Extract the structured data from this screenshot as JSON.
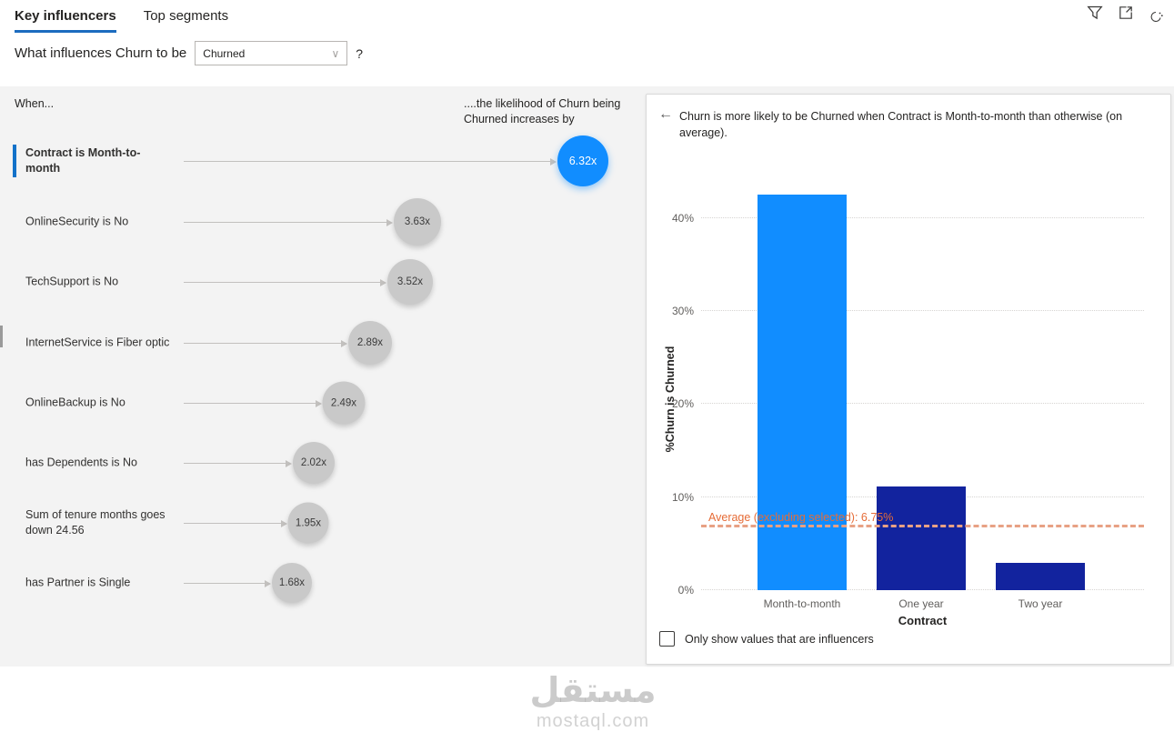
{
  "colors": {
    "accent": "#1C6CBF",
    "accent_bright": "#1372C9",
    "selected_blue": "#118DFF",
    "dark_blue": "#12239E",
    "bubble_gray": "#C9C9C9",
    "avg_line": "#E8A184",
    "avg_text": "#E66C37",
    "panel_bg": "#F3F3F3"
  },
  "tabs": [
    {
      "label": "Key influencers",
      "active": true
    },
    {
      "label": "Top segments",
      "active": false
    }
  ],
  "header_icons": [
    "filter-icon",
    "focus-mode-icon",
    "analyze-icon"
  ],
  "question": {
    "prefix": "What influences Churn to be",
    "dropdown_value": "Churned",
    "suffix": "?"
  },
  "left_panel": {
    "when_label": "When...",
    "likelihood_label": "....the likelihood of Churn being Churned increases by",
    "influencers": [
      {
        "label": "Contract is Month-to-month",
        "value": "6.32x",
        "selected": true
      },
      {
        "label": "OnlineSecurity is No",
        "value": "3.63x",
        "selected": false
      },
      {
        "label": "TechSupport is No",
        "value": "3.52x",
        "selected": false
      },
      {
        "label": "InternetService is Fiber optic",
        "value": "2.89x",
        "selected": false
      },
      {
        "label": "OnlineBackup is No",
        "value": "2.49x",
        "selected": false
      },
      {
        "label": "has Dependents is No",
        "value": "2.02x",
        "selected": false
      },
      {
        "label": "Sum of tenure months goes down 24.56",
        "value": "1.95x",
        "selected": false
      },
      {
        "label": "has Partner is Single",
        "value": "1.68x",
        "selected": false
      }
    ]
  },
  "detail_panel": {
    "back_arrow": "←",
    "description": "Churn is more likely to be Churned when Contract is Month-to-month than otherwise (on average).",
    "average_label": "Average (excluding selected): 6.75%",
    "checkbox_label": "Only show values that are influencers",
    "checkbox_checked": false
  },
  "chart_data": {
    "type": "bar",
    "categories": [
      "Month-to-month",
      "One year",
      "Two year"
    ],
    "values": [
      42.6,
      11.2,
      2.9
    ],
    "title": "",
    "xlabel": "Contract",
    "ylabel": "%Churn is Churned",
    "ylim": [
      0,
      45
    ],
    "yticks": [
      "0%",
      "10%",
      "20%",
      "30%",
      "40%"
    ],
    "grid": "dotted horizontal",
    "average_value": 6.75,
    "colors": {
      "selected": "#118DFF",
      "other": "#12239E"
    }
  },
  "watermark": {
    "arabic": "مستقل",
    "domain": "mostaql.com"
  }
}
